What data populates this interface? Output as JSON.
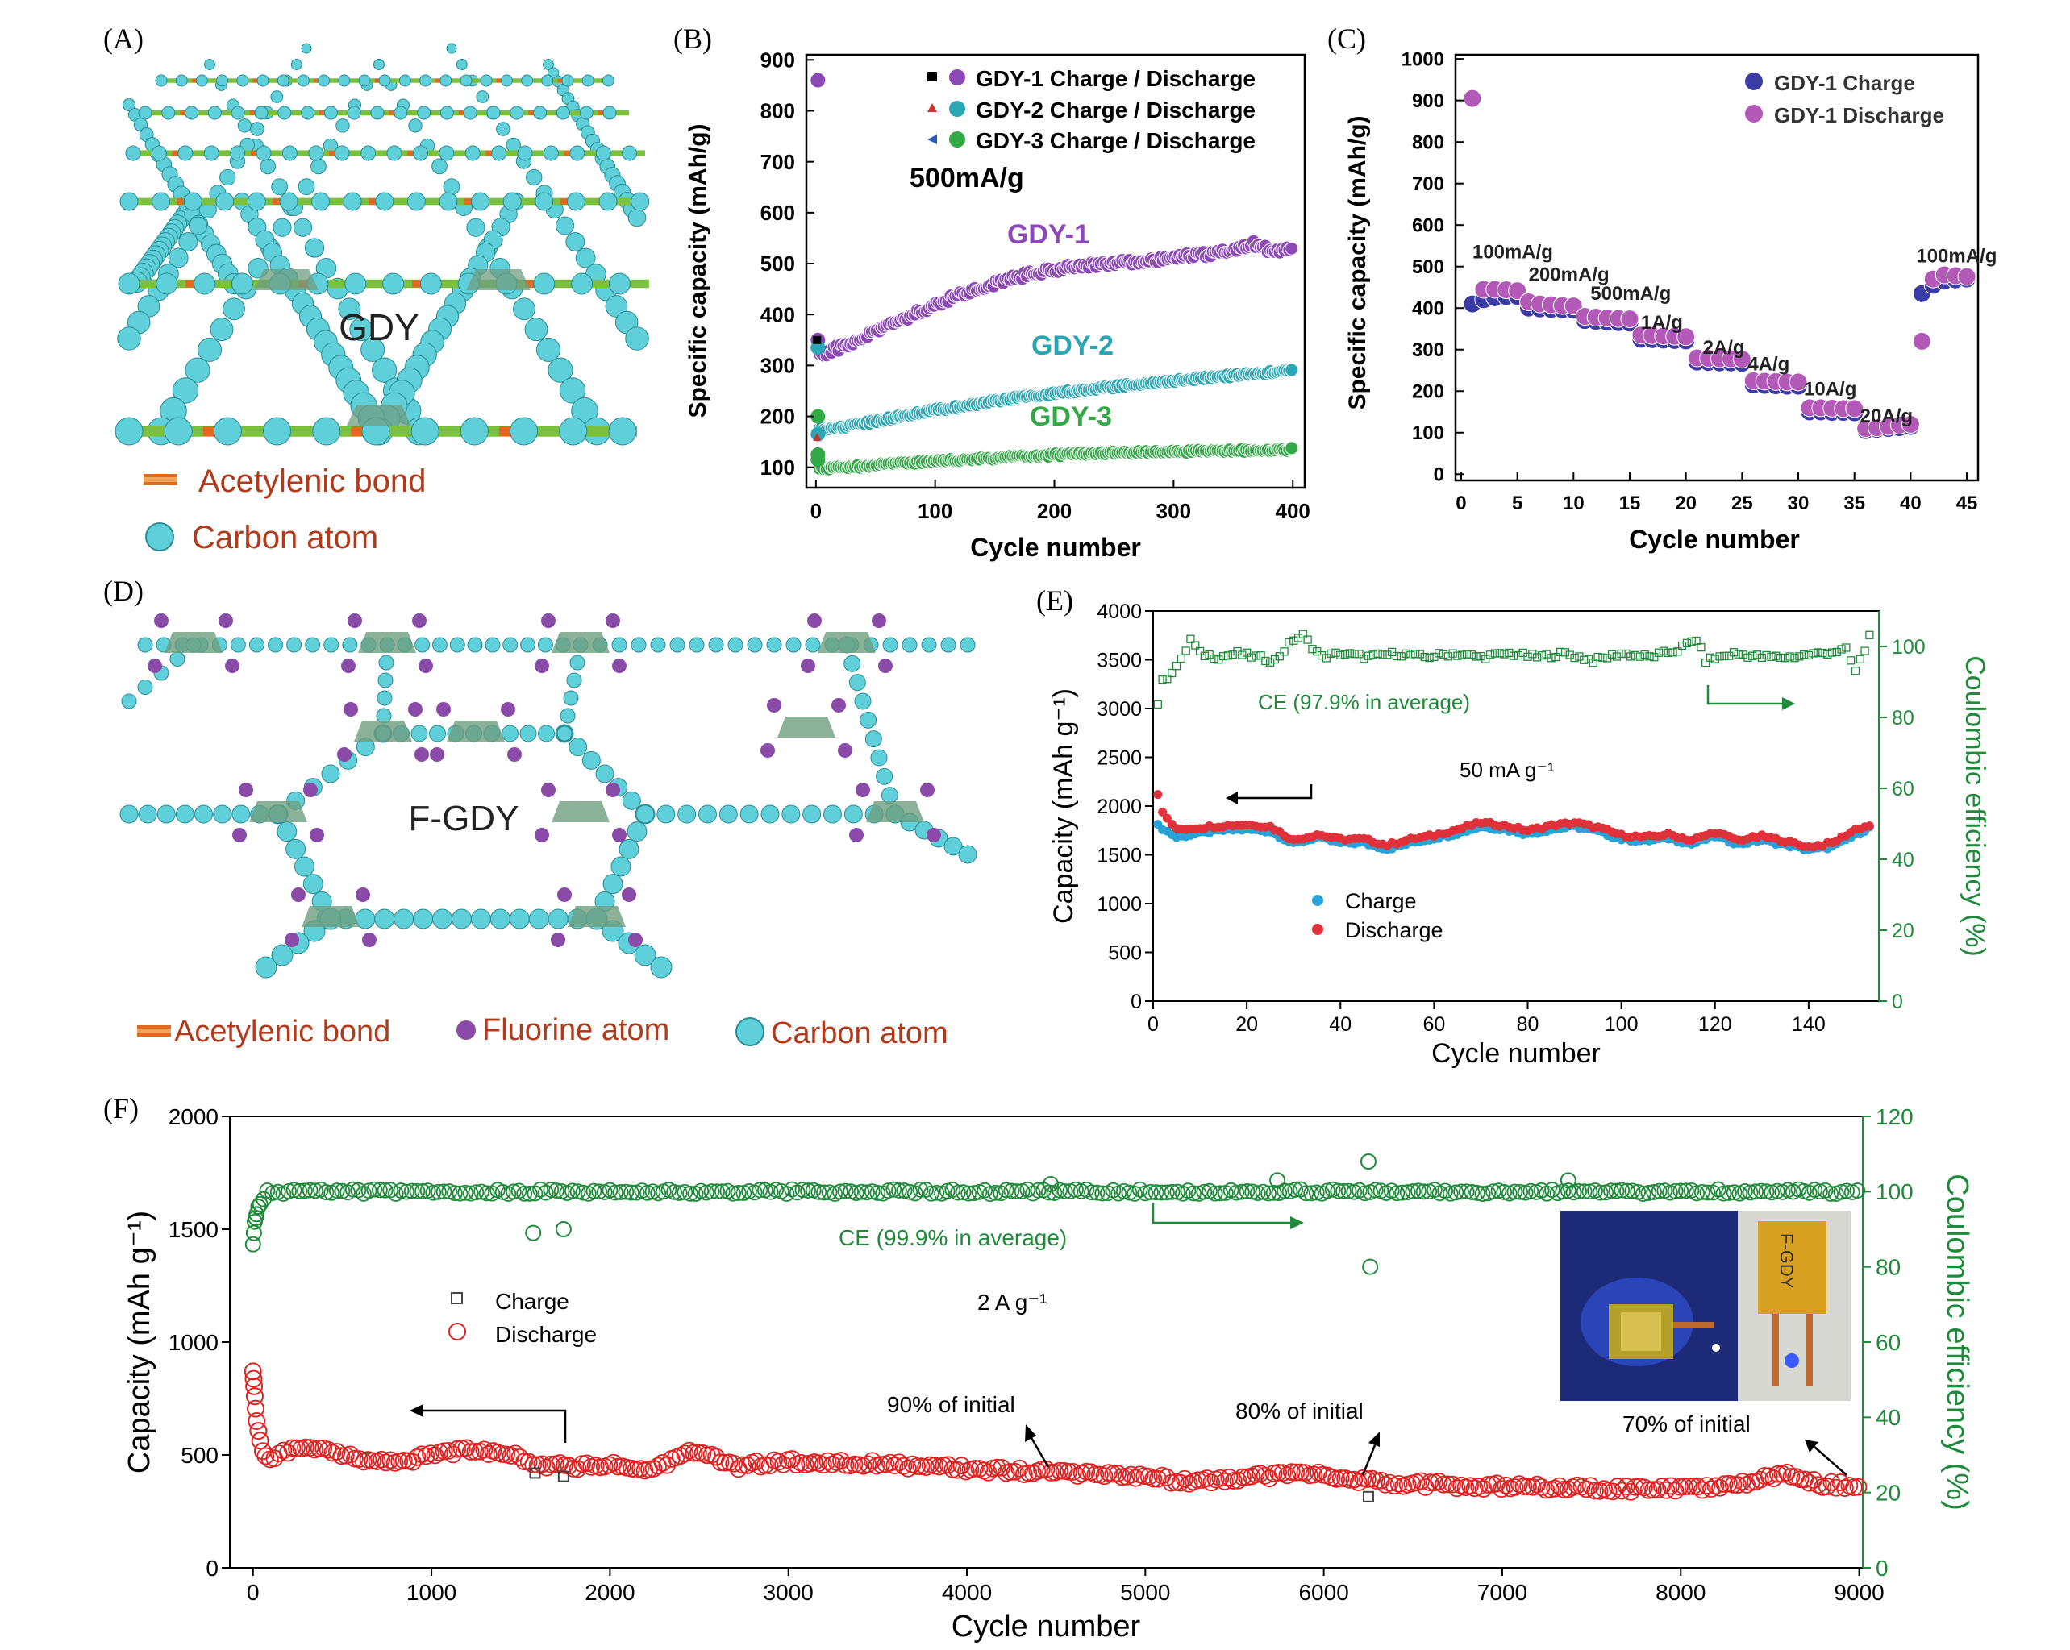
{
  "panel_labels": [
    "(A)",
    "(B)",
    "(C)",
    "(D)",
    "(E)",
    "(F)"
  ],
  "colors": {
    "gdy1": "#8b48b6",
    "gdy2": "#2aa6b4",
    "gdy3": "#32a846",
    "charge_c": "#3b3ba6",
    "discharge_c": "#b35ab8",
    "charge_e": "#29a3d6",
    "discharge_e": "#e0303a",
    "ce_green": "#1f8a3a",
    "discharge_f": "#e02020",
    "charge_f": "#444444",
    "atom": "#5fd0da",
    "bond_orange": "#e06a20",
    "bond_green": "#7cc040",
    "fluorine": "#8a4aa8",
    "ring_fill": "#6e9e80",
    "legend_text": "#b03a1a"
  },
  "panel_a": {
    "label": "GDY",
    "legend": [
      "Acetylenic bond",
      "Carbon atom"
    ]
  },
  "panel_d": {
    "label": "F-GDY",
    "legend": [
      "Acetylenic bond",
      "Fluorine atom",
      "Carbon atom"
    ]
  },
  "chart_data": [
    {
      "id": "B",
      "type": "scatter",
      "xlabel": "Cycle number",
      "ylabel": "Specific capacity (mAh/g)",
      "xlim": [
        0,
        400
      ],
      "ylim": [
        100,
        900
      ],
      "xticks": [
        0,
        100,
        200,
        300,
        400
      ],
      "yticks": [
        100,
        200,
        300,
        400,
        500,
        600,
        700,
        800,
        900
      ],
      "annotation": "500mA/g",
      "legend": [
        "GDY-1 Charge / Discharge",
        "GDY-2 Charge / Discharge",
        "GDY-3 Charge / Discharge"
      ],
      "series": [
        {
          "name": "GDY-1",
          "label": "GDY-1",
          "start_points": [
            [
              1,
              860
            ],
            [
              1,
              350
            ],
            [
              1,
              335
            ]
          ],
          "x": [
            5,
            25,
            50,
            75,
            100,
            125,
            150,
            175,
            200,
            225,
            250,
            275,
            300,
            325,
            350,
            365,
            380,
            400
          ],
          "values": [
            322,
            340,
            365,
            393,
            420,
            442,
            461,
            477,
            488,
            496,
            500,
            505,
            512,
            518,
            524,
            540,
            527,
            528
          ]
        },
        {
          "name": "GDY-2",
          "label": "GDY-2",
          "start_points": [
            [
              1,
              335
            ],
            [
              1,
              165
            ]
          ],
          "x": [
            5,
            25,
            50,
            75,
            100,
            125,
            150,
            175,
            200,
            225,
            250,
            275,
            300,
            325,
            350,
            375,
            400
          ],
          "values": [
            175,
            180,
            190,
            202,
            212,
            220,
            230,
            238,
            245,
            252,
            258,
            265,
            270,
            276,
            280,
            285,
            290
          ]
        },
        {
          "name": "GDY-3",
          "label": "GDY-3",
          "start_points": [
            [
              1,
              200
            ],
            [
              1,
              125
            ],
            [
              1,
              115
            ]
          ],
          "x": [
            5,
            25,
            50,
            75,
            100,
            125,
            150,
            175,
            200,
            225,
            250,
            275,
            300,
            325,
            350,
            375,
            400
          ],
          "values": [
            98,
            100,
            104,
            108,
            112,
            115,
            118,
            121,
            124,
            126,
            128,
            130,
            131,
            132,
            133,
            134,
            135
          ]
        }
      ]
    },
    {
      "id": "C",
      "type": "scatter",
      "xlabel": "Cycle number",
      "ylabel": "Specific capacity (mAh/g)",
      "xlim": [
        0,
        45
      ],
      "ylim": [
        0,
        1000
      ],
      "xticks": [
        0,
        5,
        10,
        15,
        20,
        25,
        30,
        35,
        40,
        45
      ],
      "yticks": [
        0,
        100,
        200,
        300,
        400,
        500,
        600,
        700,
        800,
        900,
        1000
      ],
      "legend": [
        "GDY-1 Charge",
        "GDY-1 Discharge"
      ],
      "rate_labels": [
        {
          "text": "100mA/g",
          "x": 1,
          "y": 520
        },
        {
          "text": "200mA/g",
          "x": 6,
          "y": 465
        },
        {
          "text": "500mA/g",
          "x": 11.5,
          "y": 420
        },
        {
          "text": "1A/g",
          "x": 16,
          "y": 350
        },
        {
          "text": "2A/g",
          "x": 21.5,
          "y": 290
        },
        {
          "text": "4A/g",
          "x": 25.5,
          "y": 250
        },
        {
          "text": "10A/g",
          "x": 30.5,
          "y": 190
        },
        {
          "text": "20A/g",
          "x": 35.5,
          "y": 125
        },
        {
          "text": "100mA/g",
          "x": 40.5,
          "y": 510
        }
      ],
      "series": [
        {
          "name": "GDY-1 Charge",
          "x": [
            1,
            2,
            3,
            4,
            5,
            6,
            7,
            8,
            9,
            10,
            11,
            12,
            13,
            14,
            15,
            16,
            17,
            18,
            19,
            20,
            21,
            22,
            23,
            24,
            25,
            26,
            27,
            28,
            29,
            30,
            31,
            32,
            33,
            34,
            35,
            36,
            37,
            38,
            39,
            40,
            41,
            42,
            43,
            44,
            45
          ],
          "values": [
            410,
            420,
            425,
            428,
            428,
            400,
            398,
            397,
            396,
            395,
            370,
            368,
            366,
            365,
            364,
            325,
            324,
            323,
            322,
            321,
            270,
            269,
            268,
            268,
            267,
            215,
            214,
            213,
            212,
            212,
            150,
            150,
            149,
            149,
            148,
            105,
            108,
            110,
            112,
            115,
            435,
            455,
            465,
            468,
            470
          ]
        },
        {
          "name": "GDY-1 Discharge",
          "x": [
            1,
            2,
            3,
            4,
            5,
            6,
            7,
            8,
            9,
            10,
            11,
            12,
            13,
            14,
            15,
            16,
            17,
            18,
            19,
            20,
            21,
            22,
            23,
            24,
            25,
            26,
            27,
            28,
            29,
            30,
            31,
            32,
            33,
            34,
            35,
            36,
            37,
            38,
            39,
            40,
            41,
            42,
            43,
            44,
            45
          ],
          "values": [
            905,
            445,
            445,
            444,
            442,
            415,
            410,
            408,
            406,
            405,
            380,
            378,
            376,
            375,
            374,
            335,
            334,
            333,
            332,
            331,
            280,
            279,
            278,
            278,
            277,
            225,
            224,
            223,
            222,
            222,
            160,
            160,
            159,
            158,
            158,
            110,
            112,
            115,
            118,
            120,
            320,
            470,
            480,
            478,
            476
          ]
        }
      ]
    },
    {
      "id": "E",
      "type": "scatter",
      "xlabel": "Cycle number",
      "ylabel": "Capacity (mAh g⁻¹)",
      "ylabel_right": "Coulombic efficiency (%)",
      "xlim": [
        0,
        155
      ],
      "ylim": [
        0,
        4000
      ],
      "ylim_right": [
        0,
        110
      ],
      "xticks": [
        0,
        20,
        40,
        60,
        80,
        100,
        120,
        140
      ],
      "yticks": [
        0,
        500,
        1000,
        1500,
        2000,
        2500,
        3000,
        3500,
        4000
      ],
      "yticks_right": [
        0,
        20,
        40,
        60,
        80,
        100
      ],
      "annotation_ce": "CE (97.9% in average)",
      "annotation_rate": "50 mA g⁻¹",
      "legend": [
        "Charge",
        "Discharge"
      ],
      "series": [
        {
          "name": "Charge",
          "x": [
            1,
            5,
            10,
            15,
            20,
            25,
            30,
            35,
            40,
            45,
            50,
            55,
            60,
            65,
            70,
            75,
            80,
            85,
            90,
            95,
            100,
            105,
            110,
            115,
            120,
            125,
            130,
            135,
            140,
            145,
            150,
            153
          ],
          "values": [
            1800,
            1680,
            1720,
            1750,
            1760,
            1740,
            1610,
            1680,
            1620,
            1620,
            1560,
            1620,
            1670,
            1720,
            1790,
            1760,
            1710,
            1760,
            1790,
            1740,
            1660,
            1640,
            1670,
            1610,
            1690,
            1610,
            1650,
            1600,
            1550,
            1580,
            1700,
            1780
          ]
        },
        {
          "name": "Discharge",
          "x": [
            1,
            2,
            5,
            10,
            15,
            20,
            25,
            30,
            35,
            40,
            45,
            50,
            55,
            60,
            65,
            70,
            75,
            80,
            85,
            90,
            95,
            100,
            105,
            110,
            115,
            120,
            125,
            130,
            135,
            140,
            145,
            150,
            153
          ],
          "values": [
            2130,
            1930,
            1760,
            1780,
            1800,
            1810,
            1790,
            1650,
            1710,
            1660,
            1660,
            1600,
            1660,
            1700,
            1760,
            1830,
            1800,
            1750,
            1800,
            1830,
            1780,
            1700,
            1680,
            1710,
            1650,
            1730,
            1650,
            1690,
            1640,
            1580,
            1620,
            1760,
            1800
          ]
        },
        {
          "name": "CE",
          "x": [
            1,
            2,
            4,
            6,
            8,
            10,
            14,
            18,
            22,
            26,
            30,
            32,
            36,
            40,
            46,
            52,
            58,
            64,
            70,
            76,
            82,
            88,
            94,
            100,
            106,
            112,
            116,
            118,
            124,
            130,
            136,
            142,
            148,
            150,
            152,
            153
          ],
          "values": [
            84,
            90,
            93,
            96,
            102,
            98,
            97,
            98,
            97,
            96,
            102,
            103,
            97,
            98,
            97,
            98,
            97,
            98,
            97,
            98,
            97,
            98,
            96,
            98,
            97,
            99,
            102,
            96,
            98,
            97,
            97,
            98,
            99,
            93,
            99,
            103
          ]
        }
      ]
    },
    {
      "id": "F",
      "type": "scatter",
      "xlabel": "Cycle number",
      "ylabel": "Capacity (mAh g⁻¹)",
      "ylabel_right": "Coulombic efficiency (%)",
      "xlim": [
        0,
        9000
      ],
      "ylim": [
        0,
        2000
      ],
      "ylim_right": [
        0,
        120
      ],
      "xticks": [
        0,
        1000,
        2000,
        3000,
        4000,
        5000,
        6000,
        7000,
        8000,
        9000
      ],
      "yticks": [
        0,
        500,
        1000,
        1500,
        2000
      ],
      "yticks_right": [
        0,
        20,
        40,
        60,
        80,
        100,
        120
      ],
      "annotation_ce": "CE (99.9% in average)",
      "annotation_rate": "2 A g⁻¹",
      "annotations_retention": [
        "90% of initial",
        "80% of initial",
        "70% of initial"
      ],
      "inset_text": "F-GDY",
      "legend": [
        "Charge",
        "Discharge"
      ],
      "series": [
        {
          "name": "Discharge",
          "x": [
            0,
            20,
            50,
            100,
            200,
            300,
            500,
            700,
            900,
            1000,
            1200,
            1400,
            1600,
            1800,
            2000,
            2200,
            2400,
            2500,
            2700,
            3000,
            3500,
            4000,
            4500,
            5000,
            5200,
            5500,
            5800,
            6000,
            6300,
            6600,
            7000,
            7500,
            8000,
            8300,
            8600,
            8800,
            9000
          ],
          "values": [
            870,
            650,
            520,
            490,
            520,
            540,
            500,
            470,
            480,
            510,
            520,
            510,
            460,
            450,
            460,
            420,
            500,
            520,
            450,
            470,
            460,
            440,
            420,
            410,
            380,
            390,
            420,
            410,
            380,
            370,
            360,
            350,
            350,
            360,
            420,
            370,
            360
          ]
        },
        {
          "name": "Charge",
          "x": [
            1580,
            1740,
            6250
          ],
          "values": [
            420,
            405,
            315
          ]
        },
        {
          "name": "CE",
          "x": [
            0,
            10,
            30,
            60,
            100,
            500,
            1000,
            1500,
            1570,
            1740,
            2000,
            3000,
            4000,
            4470,
            5000,
            5740,
            6000,
            6250,
            6260,
            7000,
            7370,
            8000,
            9000
          ],
          "values": [
            86,
            92,
            96,
            98,
            99.5,
            100,
            100,
            100,
            89,
            90,
            100,
            100,
            100,
            102,
            100,
            103,
            100,
            108,
            80,
            100,
            103,
            100,
            100
          ]
        }
      ]
    }
  ]
}
